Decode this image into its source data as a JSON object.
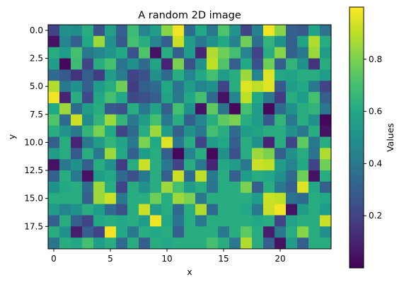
{
  "chart_data": {
    "type": "heatmap",
    "title": "A random 2D image",
    "xlabel": "x",
    "ylabel": "y",
    "colorbar_label": "Values",
    "colormap": "viridis",
    "n_cols": 25,
    "n_rows": 20,
    "xlim": [
      -0.5,
      24.5
    ],
    "ylim_top_to_bottom": [
      -0.5,
      19.5
    ],
    "x_ticks": [
      0,
      5,
      10,
      15,
      20
    ],
    "x_tick_labels": [
      "0",
      "5",
      "10",
      "15",
      "20"
    ],
    "y_ticks": [
      0,
      2.5,
      5,
      7.5,
      10,
      12.5,
      15,
      17.5
    ],
    "y_tick_labels": [
      "0.0",
      "2.5",
      "5.0",
      "7.5",
      "10.0",
      "12.5",
      "15.0",
      "17.5"
    ],
    "colorbar_range": [
      0.0,
      1.0
    ],
    "colorbar_ticks": [
      0.2,
      0.4,
      0.6,
      0.8
    ],
    "colorbar_tick_labels": [
      "0.2",
      "0.4",
      "0.6",
      "0.8"
    ],
    "grid": false,
    "values": [
      [
        0.2,
        0.5,
        0.48,
        0.62,
        0.25,
        0.56,
        0.3,
        0.68,
        0.45,
        0.55,
        0.82,
        0.98,
        0.35,
        0.6,
        0.4,
        0.72,
        0.52,
        0.2,
        0.44,
        0.98,
        0.82,
        0.3,
        0.28,
        0.58,
        0.38
      ],
      [
        0.05,
        0.45,
        0.3,
        0.6,
        0.85,
        0.5,
        0.28,
        0.7,
        0.62,
        0.45,
        0.3,
        0.92,
        0.55,
        0.4,
        0.5,
        0.6,
        0.44,
        0.78,
        0.36,
        0.65,
        0.5,
        0.3,
        0.58,
        0.88,
        0.62
      ],
      [
        0.62,
        0.55,
        0.7,
        0.4,
        0.45,
        0.52,
        0.6,
        0.25,
        0.72,
        0.05,
        0.62,
        0.3,
        0.55,
        0.1,
        0.88,
        0.78,
        0.7,
        0.45,
        0.2,
        0.62,
        0.82,
        0.3,
        0.4,
        0.85,
        0.55
      ],
      [
        0.55,
        0.02,
        0.68,
        0.2,
        0.62,
        0.7,
        0.38,
        0.5,
        0.35,
        0.58,
        0.1,
        0.8,
        0.25,
        0.5,
        0.9,
        0.72,
        0.3,
        0.6,
        0.25,
        0.78,
        0.3,
        0.65,
        0.5,
        0.15,
        0.62
      ],
      [
        0.35,
        0.28,
        0.15,
        0.3,
        0.18,
        0.55,
        0.42,
        0.2,
        0.25,
        0.5,
        0.35,
        0.62,
        0.45,
        0.6,
        0.7,
        0.55,
        0.62,
        0.85,
        0.45,
        0.95,
        0.6,
        0.58,
        0.62,
        0.62,
        0.55
      ],
      [
        0.88,
        0.4,
        0.5,
        0.3,
        0.55,
        0.62,
        0.78,
        0.18,
        0.3,
        0.35,
        0.6,
        0.38,
        0.55,
        0.45,
        0.5,
        0.2,
        0.62,
        0.95,
        0.9,
        0.95,
        0.28,
        0.55,
        0.6,
        0.4,
        0.2
      ],
      [
        0.98,
        0.1,
        0.62,
        0.22,
        0.6,
        0.7,
        0.6,
        0.22,
        0.25,
        0.3,
        0.58,
        0.4,
        0.6,
        0.7,
        0.35,
        0.05,
        0.45,
        0.9,
        0.6,
        0.4,
        0.18,
        0.62,
        0.55,
        0.7,
        0.3
      ],
      [
        0.6,
        0.85,
        0.35,
        0.55,
        0.62,
        0.28,
        0.25,
        0.62,
        0.4,
        0.58,
        0.3,
        0.7,
        0.5,
        0.05,
        0.75,
        0.38,
        0.02,
        0.7,
        0.55,
        0.02,
        0.35,
        0.5,
        0.62,
        0.65,
        0.4
      ],
      [
        0.72,
        0.35,
        0.92,
        0.48,
        0.65,
        0.85,
        0.65,
        0.4,
        0.55,
        0.7,
        0.4,
        0.62,
        0.3,
        0.45,
        0.62,
        0.75,
        0.8,
        0.62,
        0.55,
        0.28,
        0.65,
        0.4,
        0.62,
        0.5,
        0.02
      ],
      [
        0.62,
        0.52,
        0.4,
        0.65,
        0.8,
        0.6,
        0.2,
        0.35,
        0.62,
        0.85,
        0.55,
        0.3,
        0.5,
        0.4,
        0.7,
        0.62,
        0.35,
        0.55,
        0.58,
        0.62,
        0.62,
        0.5,
        0.4,
        0.62,
        0.05
      ],
      [
        0.3,
        0.62,
        0.1,
        0.4,
        0.55,
        0.65,
        0.58,
        0.4,
        0.8,
        0.6,
        0.95,
        0.4,
        0.62,
        0.2,
        0.55,
        0.6,
        0.3,
        0.62,
        0.5,
        0.1,
        0.62,
        0.2,
        0.75,
        0.4,
        0.62
      ],
      [
        0.55,
        0.62,
        0.28,
        0.62,
        0.4,
        0.85,
        0.6,
        0.3,
        0.55,
        0.62,
        0.3,
        0.02,
        0.45,
        0.62,
        0.02,
        0.5,
        0.25,
        0.62,
        0.85,
        0.8,
        0.3,
        0.5,
        0.62,
        0.38,
        0.88
      ],
      [
        0.05,
        0.4,
        0.5,
        0.3,
        0.62,
        0.5,
        0.18,
        0.62,
        0.92,
        0.62,
        0.4,
        0.2,
        0.62,
        0.4,
        0.1,
        0.6,
        0.55,
        0.4,
        0.92,
        0.9,
        0.55,
        0.45,
        0.6,
        0.2,
        0.78
      ],
      [
        0.3,
        0.62,
        0.4,
        0.05,
        0.55,
        0.6,
        0.35,
        0.25,
        0.4,
        0.62,
        0.3,
        0.92,
        0.35,
        0.9,
        0.4,
        0.62,
        0.3,
        0.55,
        0.62,
        0.6,
        0.5,
        0.35,
        0.78,
        0.05,
        0.62
      ],
      [
        0.5,
        0.6,
        0.62,
        0.35,
        0.85,
        0.62,
        0.2,
        0.62,
        0.5,
        0.62,
        0.85,
        0.7,
        0.55,
        0.62,
        0.38,
        0.62,
        0.62,
        0.8,
        0.3,
        0.62,
        0.4,
        0.3,
        0.95,
        0.6,
        0.3
      ],
      [
        0.62,
        0.62,
        0.62,
        0.3,
        0.85,
        0.92,
        0.4,
        0.62,
        0.62,
        0.78,
        0.62,
        0.85,
        0.8,
        0.4,
        0.62,
        0.62,
        0.62,
        0.62,
        0.55,
        0.92,
        0.9,
        0.38,
        0.35,
        0.62,
        0.6
      ],
      [
        0.55,
        0.45,
        0.5,
        0.62,
        0.55,
        0.35,
        0.25,
        0.62,
        0.92,
        0.55,
        0.62,
        0.35,
        0.62,
        0.88,
        0.35,
        0.62,
        0.62,
        0.6,
        0.4,
        0.92,
        0.98,
        0.05,
        0.55,
        0.62,
        0.55
      ],
      [
        0.3,
        0.62,
        0.3,
        0.2,
        0.6,
        0.62,
        0.6,
        0.62,
        0.55,
        0.98,
        0.6,
        0.38,
        0.62,
        0.4,
        0.62,
        0.62,
        0.62,
        0.62,
        0.6,
        0.62,
        0.2,
        0.58,
        0.62,
        0.62,
        0.92
      ],
      [
        0.62,
        0.5,
        0.08,
        0.3,
        0.2,
        0.98,
        0.6,
        0.4,
        0.62,
        0.6,
        0.62,
        0.3,
        0.62,
        0.62,
        0.62,
        0.4,
        0.62,
        0.75,
        0.62,
        0.08,
        0.4,
        0.62,
        0.82,
        0.62,
        0.5
      ],
      [
        0.38,
        0.62,
        0.6,
        0.7,
        0.55,
        0.62,
        0.35,
        0.62,
        0.3,
        0.62,
        0.6,
        0.62,
        0.62,
        0.62,
        0.7,
        0.62,
        0.4,
        0.88,
        0.62,
        0.3,
        0.05,
        0.55,
        0.3,
        0.62,
        0.62
      ]
    ]
  }
}
